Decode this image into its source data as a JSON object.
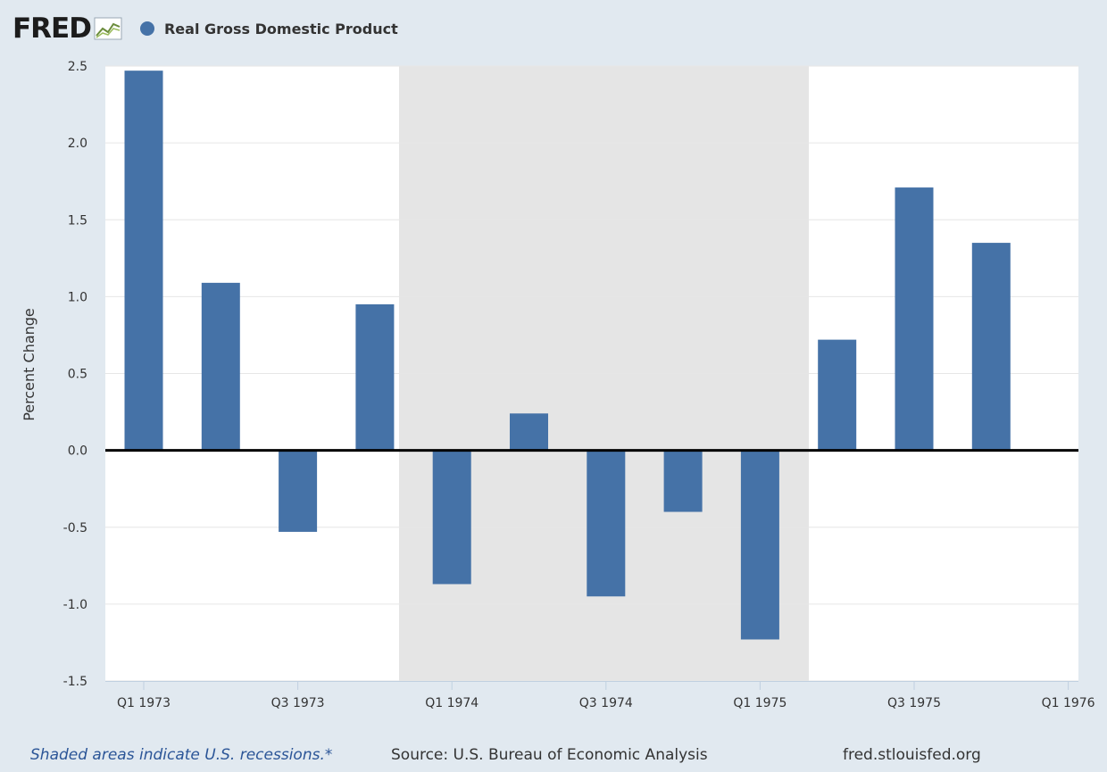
{
  "brand": {
    "name": "FRED",
    "icon": "line-chart-icon"
  },
  "legend": {
    "label": "Real Gross Domestic Product",
    "color": "#4572a7"
  },
  "footer": {
    "note": "Shaded areas indicate U.S. recessions.*",
    "source": "Source: U.S. Bureau of Economic Analysis",
    "site": "fred.stlouisfed.org"
  },
  "chart_data": {
    "type": "bar",
    "title": "",
    "xlabel": "",
    "ylabel": "Percent Change",
    "ylim": [
      -1.5,
      2.5
    ],
    "yticks": [
      -1.5,
      -1.0,
      -0.5,
      0.0,
      0.5,
      1.0,
      1.5,
      2.0,
      2.5
    ],
    "ytick_labels": [
      "-1.5",
      "-1.0",
      "-0.5",
      "0.0",
      "0.5",
      "1.0",
      "1.5",
      "2.0",
      "2.5"
    ],
    "categories": [
      "Q1 1973",
      "Q2 1973",
      "Q3 1973",
      "Q4 1973",
      "Q1 1974",
      "Q2 1974",
      "Q3 1974",
      "Q4 1974",
      "Q1 1975",
      "Q2 1975",
      "Q3 1975",
      "Q4 1975"
    ],
    "xtick_labels": [
      "Q1 1973",
      "Q3 1973",
      "Q1 1974",
      "Q3 1974",
      "Q1 1975",
      "Q3 1975",
      "Q1 1976"
    ],
    "series": [
      {
        "name": "Real Gross Domestic Product",
        "color": "#4572a7",
        "values": [
          2.47,
          1.09,
          -0.53,
          0.95,
          -0.87,
          0.24,
          -0.95,
          -0.4,
          -1.23,
          0.72,
          1.71,
          1.35
        ]
      }
    ],
    "recession": {
      "start": "Q4 1973 (late)",
      "end": "Q1 1975 (late)",
      "color": "#e5e5e5"
    },
    "grid": true,
    "legend_position": "top-left"
  }
}
